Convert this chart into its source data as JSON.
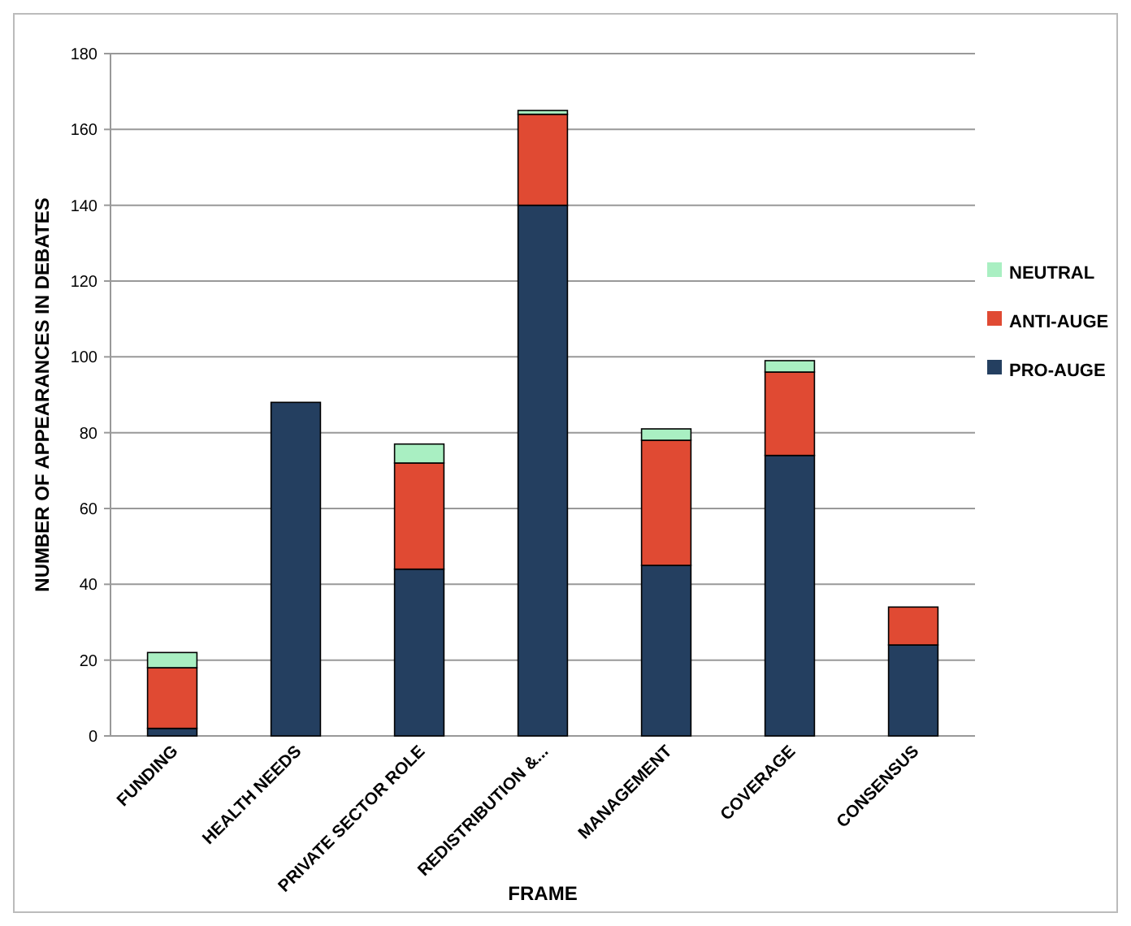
{
  "chart_data": {
    "type": "bar",
    "stacked": true,
    "xlabel": "FRAME",
    "ylabel": "NUMBER OF APPEARANCES IN DEBATES",
    "categories": [
      "FUNDING",
      "HEALTH NEEDS",
      "PRIVATE SECTOR ROLE",
      "REDISTRIBUTION &...",
      "MANAGEMENT",
      "COVERAGE",
      "CONSENSUS"
    ],
    "series": [
      {
        "name": "PRO-AUGE",
        "color": "#243f60",
        "values": [
          2,
          88,
          44,
          140,
          45,
          74,
          24
        ]
      },
      {
        "name": "ANTI-AUGE",
        "color": "#e04a33",
        "values": [
          16,
          0,
          28,
          24,
          33,
          22,
          10
        ]
      },
      {
        "name": "NEUTRAL",
        "color": "#a9efc2",
        "values": [
          4,
          0,
          5,
          1,
          3,
          3,
          0
        ]
      }
    ],
    "ylim": [
      0,
      180
    ],
    "yticks": [
      0,
      20,
      40,
      60,
      80,
      100,
      120,
      140,
      160,
      180
    ],
    "grid": "y",
    "legend": "right"
  }
}
